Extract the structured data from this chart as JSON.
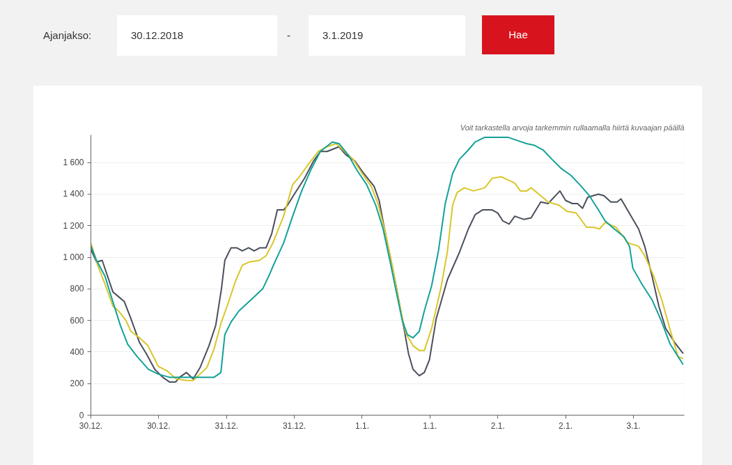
{
  "chart_data": {
    "type": "line",
    "annotations": [
      "Ajanjakso:",
      "30.12.2018",
      "-",
      "3.1.2019",
      "Hae",
      "Voit tarkastella arvoja tarkemmin rullaamalla hiirtä kuvaajan päällä"
    ],
    "xlim": [
      "2018-12-30T00:00",
      "2019-01-03T09:00"
    ],
    "ylim": [
      0,
      1775
    ],
    "xticks": [
      {
        "value": "2018-12-30T00:00",
        "label": "30.12."
      },
      {
        "value": "2018-12-30T12:00",
        "label": "30.12."
      },
      {
        "value": "2018-12-31T00:00",
        "label": "31.12."
      },
      {
        "value": "2018-12-31T12:00",
        "label": "31.12."
      },
      {
        "value": "2019-01-01T00:00",
        "label": "1.1."
      },
      {
        "value": "2019-01-01T12:00",
        "label": "1.1."
      },
      {
        "value": "2019-01-02T00:00",
        "label": "2.1."
      },
      {
        "value": "2019-01-02T12:00",
        "label": "2.1."
      },
      {
        "value": "2019-01-03T00:00",
        "label": "3.1."
      }
    ],
    "yticks": [
      0,
      200,
      400,
      600,
      800,
      {
        "value": 1000,
        "label": "1 000"
      },
      {
        "value": 1200,
        "label": "1 200"
      },
      {
        "value": 1400,
        "label": "1 400"
      },
      {
        "value": 1600,
        "label": "1 600"
      }
    ],
    "grid": "y",
    "series": [
      {
        "color": "#4b4f5c",
        "x": [
          "2018-12-30T00:00",
          "2018-12-30T01:00",
          "2018-12-30T02:00",
          "2018-12-30T03:54",
          "2018-12-30T04:54",
          "2018-12-30T05:54",
          "2018-12-30T07:06",
          "2018-12-30T08:36",
          "2018-12-30T09:48",
          "2018-12-30T11:18",
          "2018-12-30T12:42",
          "2018-12-30T13:54",
          "2018-12-30T15:00",
          "2018-12-30T15:42",
          "2018-12-30T16:54",
          "2018-12-30T18:06",
          "2018-12-30T19:18",
          "2018-12-30T20:54",
          "2018-12-30T22:06",
          "2018-12-30T23:06",
          "2018-12-30T23:42",
          "2018-12-31T00:48",
          "2018-12-31T01:48",
          "2018-12-31T02:48",
          "2018-12-31T03:54",
          "2018-12-31T04:54",
          "2018-12-31T05:54",
          "2018-12-31T07:00",
          "2018-12-31T08:00",
          "2018-12-31T09:00",
          "2018-12-31T10:06",
          "2018-12-31T10:48",
          "2018-12-31T12:00",
          "2018-12-31T13:48",
          "2018-12-31T15:24",
          "2018-12-31T16:36",
          "2018-12-31T17:48",
          "2018-12-31T19:54",
          "2018-12-31T21:06",
          "2018-12-31T22:42",
          "2019-01-01T00:18",
          "2019-01-01T02:06",
          "2019-01-01T03:00",
          "2019-01-01T04:00",
          "2019-01-01T05:06",
          "2019-01-01T06:06",
          "2019-01-01T07:24",
          "2019-01-01T08:12",
          "2019-01-01T09:00",
          "2019-01-01T10:06",
          "2019-01-01T11:00",
          "2019-01-01T11:54",
          "2019-01-01T13:06",
          "2019-01-01T15:06",
          "2019-01-01T17:12",
          "2019-01-01T18:48",
          "2019-01-01T20:00",
          "2019-01-01T21:18",
          "2019-01-01T23:00",
          "2019-01-02T00:00",
          "2019-01-02T00:54",
          "2019-01-02T02:00",
          "2019-01-02T03:00",
          "2019-01-02T04:36",
          "2019-01-02T05:54",
          "2019-01-02T07:36",
          "2019-01-02T08:54",
          "2019-01-02T11:00",
          "2019-01-02T12:00",
          "2019-01-02T13:12",
          "2019-01-02T14:06",
          "2019-01-02T15:00",
          "2019-01-02T15:54",
          "2019-01-02T17:48",
          "2019-01-02T18:48",
          "2019-01-02T20:00",
          "2019-01-02T21:06",
          "2019-01-02T21:48",
          "2019-01-02T23:36",
          "2019-01-03T00:54",
          "2019-01-03T02:00",
          "2019-01-03T03:18",
          "2019-01-03T04:30",
          "2019-01-03T05:42",
          "2019-01-03T07:18",
          "2019-01-03T08:48"
        ],
        "values": [
          1050,
          970,
          980,
          780,
          750,
          720,
          610,
          460,
          390,
          290,
          240,
          210,
          210,
          240,
          270,
          230,
          300,
          440,
          570,
          800,
          980,
          1060,
          1060,
          1040,
          1060,
          1040,
          1060,
          1060,
          1150,
          1300,
          1300,
          1330,
          1400,
          1500,
          1610,
          1670,
          1670,
          1700,
          1650,
          1610,
          1530,
          1450,
          1360,
          1170,
          980,
          800,
          550,
          390,
          290,
          250,
          270,
          350,
          610,
          860,
          1030,
          1180,
          1270,
          1300,
          1300,
          1280,
          1230,
          1210,
          1260,
          1240,
          1250,
          1350,
          1340,
          1420,
          1360,
          1340,
          1340,
          1310,
          1380,
          1400,
          1390,
          1350,
          1350,
          1370,
          1260,
          1180,
          1070,
          880,
          690,
          550,
          460,
          390
        ]
      },
      {
        "color": "#d9c62b",
        "x": [
          "2018-12-30T00:00",
          "2018-12-30T01:12",
          "2018-12-30T02:30",
          "2018-12-30T03:54",
          "2018-12-30T04:54",
          "2018-12-30T06:12",
          "2018-12-30T07:06",
          "2018-12-30T08:36",
          "2018-12-30T10:06",
          "2018-12-30T11:54",
          "2018-12-30T13:30",
          "2018-12-30T15:06",
          "2018-12-30T16:54",
          "2018-12-30T18:06",
          "2018-12-30T19:18",
          "2018-12-30T20:30",
          "2018-12-30T21:48",
          "2018-12-30T23:00",
          "2018-12-31T00:12",
          "2018-12-31T01:36",
          "2018-12-31T02:48",
          "2018-12-31T04:00",
          "2018-12-31T05:48",
          "2018-12-31T07:00",
          "2018-12-31T08:12",
          "2018-12-31T09:12",
          "2018-12-31T10:06",
          "2018-12-31T11:42",
          "2018-12-31T12:54",
          "2018-12-31T14:30",
          "2018-12-31T16:12",
          "2018-12-31T17:48",
          "2018-12-31T19:24",
          "2018-12-31T20:36",
          "2018-12-31T22:24",
          "2019-01-01T00:00",
          "2019-01-01T01:36",
          "2019-01-01T02:48",
          "2019-01-01T04:00",
          "2019-01-01T05:18",
          "2019-01-01T06:30",
          "2019-01-01T07:42",
          "2019-01-01T09:00",
          "2019-01-01T10:06",
          "2019-01-01T11:00",
          "2019-01-01T12:18",
          "2019-01-01T13:54",
          "2019-01-01T15:06",
          "2019-01-01T16:00",
          "2019-01-01T16:48",
          "2019-01-01T18:06",
          "2019-01-01T19:42",
          "2019-01-01T21:42",
          "2019-01-01T23:00",
          "2019-01-02T00:36",
          "2019-01-02T01:48",
          "2019-01-02T03:00",
          "2019-01-02T04:00",
          "2019-01-02T05:06",
          "2019-01-02T05:54",
          "2019-01-02T07:36",
          "2019-01-02T08:54",
          "2019-01-02T10:48",
          "2019-01-02T12:18",
          "2019-01-02T13:54",
          "2019-01-02T15:42",
          "2019-01-02T16:54",
          "2019-01-02T18:00",
          "2019-01-02T19:00",
          "2019-01-02T20:54",
          "2019-01-02T21:48",
          "2019-01-02T23:06",
          "2019-01-03T00:54",
          "2019-01-03T02:00",
          "2019-01-03T03:36",
          "2019-01-03T05:06",
          "2019-01-03T06:30",
          "2019-01-03T07:54",
          "2019-01-03T08:48"
        ],
        "values": [
          1090,
          950,
          830,
          690,
          660,
          600,
          530,
          490,
          440,
          310,
          280,
          230,
          220,
          220,
          260,
          300,
          420,
          580,
          700,
          850,
          950,
          970,
          980,
          1010,
          1090,
          1180,
          1260,
          1460,
          1510,
          1590,
          1670,
          1700,
          1720,
          1680,
          1620,
          1530,
          1450,
          1340,
          1170,
          950,
          720,
          520,
          440,
          410,
          410,
          550,
          800,
          1040,
          1330,
          1410,
          1440,
          1420,
          1440,
          1500,
          1510,
          1490,
          1470,
          1420,
          1420,
          1440,
          1390,
          1350,
          1330,
          1290,
          1280,
          1190,
          1190,
          1180,
          1220,
          1190,
          1150,
          1090,
          1070,
          1010,
          880,
          720,
          540,
          370,
          360
        ]
      },
      {
        "color": "#12a199",
        "x": [
          "2018-12-30T00:00",
          "2018-12-30T01:00",
          "2018-12-30T02:30",
          "2018-12-30T03:42",
          "2018-12-30T05:12",
          "2018-12-30T06:30",
          "2018-12-30T08:12",
          "2018-12-30T10:12",
          "2018-12-30T11:54",
          "2018-12-30T13:54",
          "2018-12-30T16:54",
          "2018-12-30T19:18",
          "2018-12-30T21:48",
          "2018-12-30T23:00",
          "2018-12-30T23:42",
          "2018-12-31T00:48",
          "2018-12-31T02:12",
          "2018-12-31T04:18",
          "2018-12-31T06:24",
          "2018-12-31T07:36",
          "2018-12-31T08:18",
          "2018-12-31T10:06",
          "2018-12-31T11:42",
          "2018-12-31T13:18",
          "2018-12-31T15:00",
          "2018-12-31T16:36",
          "2018-12-31T18:42",
          "2018-12-31T19:54",
          "2018-12-31T21:30",
          "2018-12-31T23:06",
          "2019-01-01T00:48",
          "2019-01-01T02:24",
          "2019-01-01T03:42",
          "2019-01-01T04:54",
          "2019-01-01T06:06",
          "2019-01-01T07:06",
          "2019-01-01T08:00",
          "2019-01-01T09:00",
          "2019-01-01T10:06",
          "2019-01-01T11:00",
          "2019-01-01T12:18",
          "2019-01-01T13:30",
          "2019-01-01T14:42",
          "2019-01-01T16:00",
          "2019-01-01T17:12",
          "2019-01-01T18:48",
          "2019-01-01T20:00",
          "2019-01-01T21:42",
          "2019-01-02T00:00",
          "2019-01-02T01:48",
          "2019-01-02T03:24",
          "2019-01-02T05:06",
          "2019-01-02T06:24",
          "2019-01-02T08:00",
          "2019-01-02T09:36",
          "2019-01-02T11:18",
          "2019-01-02T12:54",
          "2019-01-02T14:30",
          "2019-01-02T16:12",
          "2019-01-02T17:48",
          "2019-01-02T19:00",
          "2019-01-02T20:36",
          "2019-01-02T22:18",
          "2019-01-02T23:18",
          "2019-01-02T23:54",
          "2019-01-03T01:30",
          "2019-01-03T03:18",
          "2019-01-03T04:54",
          "2019-01-03T06:30",
          "2019-01-03T08:48"
        ],
        "values": [
          1070,
          980,
          880,
          740,
          570,
          450,
          370,
          290,
          260,
          240,
          240,
          240,
          240,
          270,
          510,
          590,
          660,
          730,
          800,
          890,
          950,
          1090,
          1260,
          1420,
          1560,
          1670,
          1730,
          1720,
          1650,
          1550,
          1460,
          1330,
          1180,
          980,
          770,
          600,
          510,
          490,
          530,
          660,
          820,
          1040,
          1340,
          1530,
          1620,
          1680,
          1730,
          1760,
          1760,
          1760,
          1740,
          1720,
          1710,
          1680,
          1620,
          1560,
          1520,
          1460,
          1390,
          1300,
          1230,
          1180,
          1130,
          1070,
          930,
          830,
          730,
          600,
          450,
          320
        ]
      }
    ]
  }
}
